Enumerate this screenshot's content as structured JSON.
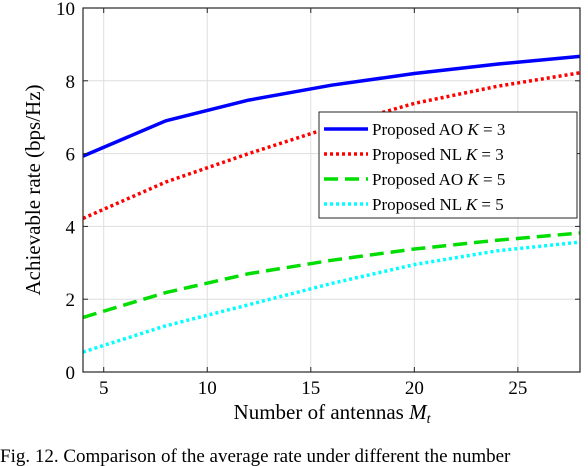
{
  "caption": "Fig. 12.   Comparison of the average rate under different the number",
  "chart_data": {
    "type": "line",
    "xlabel": "Number of antennas M_t",
    "ylabel": "Achievable rate (bps/Hz)",
    "xlim": [
      4,
      28
    ],
    "ylim": [
      0,
      10
    ],
    "xticks": [
      5,
      10,
      15,
      20,
      25
    ],
    "yticks": [
      0,
      2,
      4,
      6,
      8,
      10
    ],
    "grid": true,
    "legend_position": "center-right",
    "x": [
      4,
      8,
      12,
      16,
      20,
      24,
      28
    ],
    "series": [
      {
        "name": "Proposed AO K = 3",
        "color": "#0000ff",
        "dash": "solid",
        "values": [
          5.93,
          6.9,
          7.47,
          7.88,
          8.2,
          8.46,
          8.67
        ]
      },
      {
        "name": "Proposed NL K = 3",
        "color": "#ff0000",
        "dash": "dotted",
        "values": [
          4.22,
          5.22,
          6.0,
          6.73,
          7.38,
          7.85,
          8.22
        ]
      },
      {
        "name": "Proposed AO K = 5",
        "color": "#00dd00",
        "dash": "dashed",
        "values": [
          1.5,
          2.18,
          2.7,
          3.07,
          3.38,
          3.62,
          3.82
        ]
      },
      {
        "name": "Proposed NL K = 5",
        "color": "#00ffff",
        "dash": "dotted",
        "values": [
          0.55,
          1.27,
          1.85,
          2.43,
          2.95,
          3.33,
          3.57
        ]
      }
    ]
  }
}
